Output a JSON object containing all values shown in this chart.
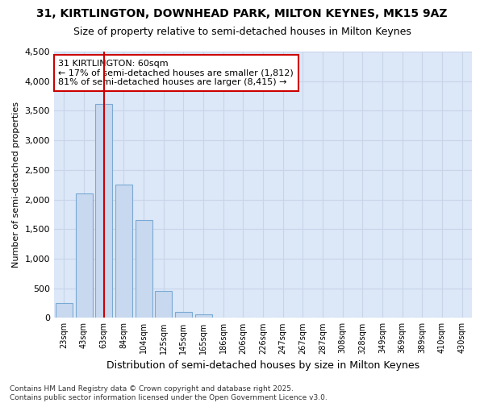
{
  "title": "31, KIRTLINGTON, DOWNHEAD PARK, MILTON KEYNES, MK15 9AZ",
  "subtitle": "Size of property relative to semi-detached houses in Milton Keynes",
  "xlabel": "Distribution of semi-detached houses by size in Milton Keynes",
  "ylabel": "Number of semi-detached properties",
  "annotation_title": "31 KIRTLINGTON: 60sqm",
  "annotation_line1": "← 17% of semi-detached houses are smaller (1,812)",
  "annotation_line2": "81% of semi-detached houses are larger (8,415) →",
  "footer_line1": "Contains HM Land Registry data © Crown copyright and database right 2025.",
  "footer_line2": "Contains public sector information licensed under the Open Government Licence v3.0.",
  "categories": [
    "23sqm",
    "43sqm",
    "63sqm",
    "84sqm",
    "104sqm",
    "125sqm",
    "145sqm",
    "165sqm",
    "186sqm",
    "206sqm",
    "226sqm",
    "247sqm",
    "267sqm",
    "287sqm",
    "308sqm",
    "328sqm",
    "349sqm",
    "369sqm",
    "389sqm",
    "410sqm",
    "430sqm"
  ],
  "values": [
    250,
    2100,
    3620,
    2250,
    1650,
    450,
    100,
    55,
    0,
    0,
    0,
    0,
    0,
    0,
    0,
    0,
    0,
    0,
    0,
    0,
    0
  ],
  "bar_color": "#c8d8ee",
  "bar_edge_color": "#7aaad4",
  "highlight_bar_index": 2,
  "highlight_bar_edge_color": "#cc0000",
  "annotation_box_edge_color": "#cc0000",
  "grid_color": "#c8d4e8",
  "plot_bg_color": "#dce8f8",
  "figure_bg_color": "#ffffff",
  "ylim": [
    0,
    4500
  ],
  "yticks": [
    0,
    500,
    1000,
    1500,
    2000,
    2500,
    3000,
    3500,
    4000,
    4500
  ]
}
